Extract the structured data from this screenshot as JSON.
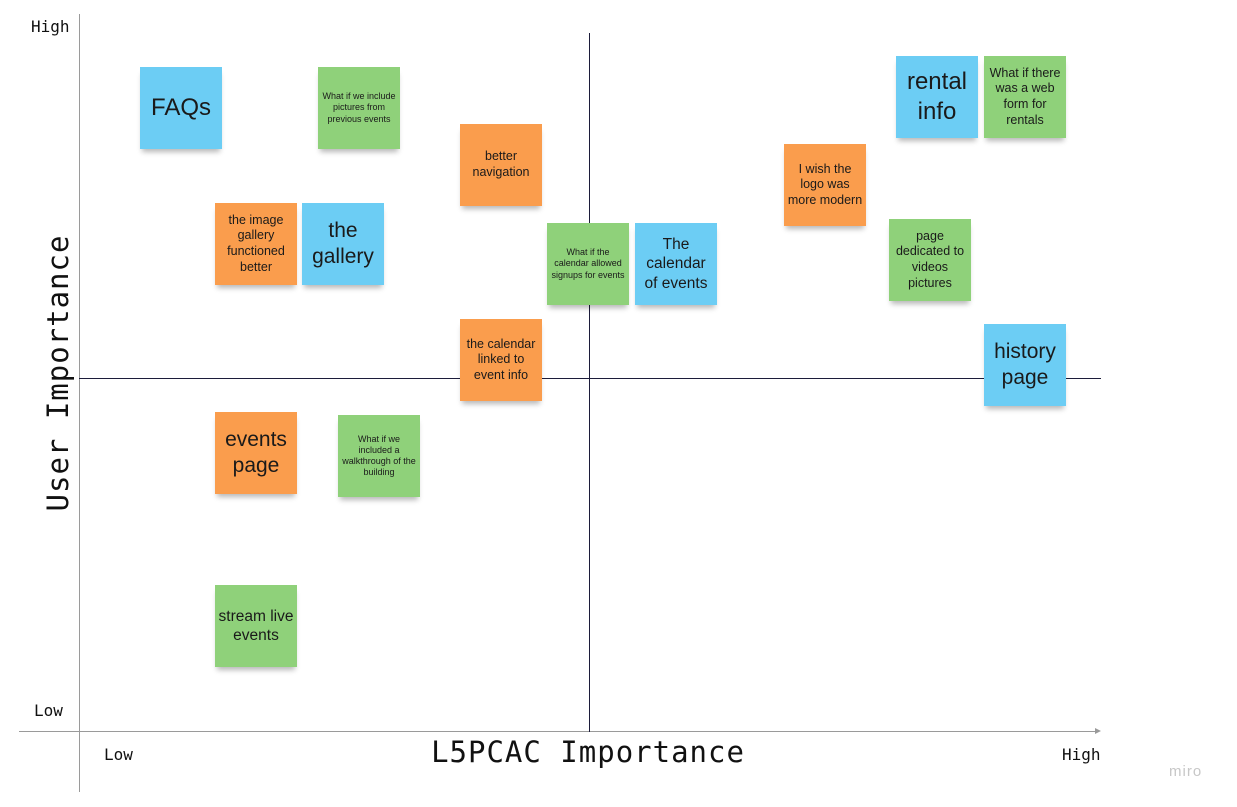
{
  "axes": {
    "y_title": "User Importance",
    "x_title": "L5PCAC Importance",
    "y_high": "High",
    "y_low": "Low",
    "x_low": "Low",
    "x_high": "High"
  },
  "notes": [
    {
      "id": "faqs",
      "text": "FAQs",
      "color": "blue"
    },
    {
      "id": "pictures-previous",
      "text": "What if we include pictures from previous events",
      "color": "green"
    },
    {
      "id": "better-navigation",
      "text": "better navigation",
      "color": "orange"
    },
    {
      "id": "image-gallery-functioned",
      "text": "the image gallery functioned better",
      "color": "orange"
    },
    {
      "id": "the-gallery",
      "text": "the gallery",
      "color": "blue"
    },
    {
      "id": "calendar-signups",
      "text": "What if the calendar allowed signups for events",
      "color": "green"
    },
    {
      "id": "calendar-of-events",
      "text": "The calendar of events",
      "color": "blue"
    },
    {
      "id": "calendar-linked",
      "text": "the calendar linked to event info",
      "color": "orange"
    },
    {
      "id": "rental-info",
      "text": "rental info",
      "color": "blue"
    },
    {
      "id": "web-form-rentals",
      "text": "What if there was a web form for rentals",
      "color": "green"
    },
    {
      "id": "logo-modern",
      "text": "I wish the logo was more modern",
      "color": "orange"
    },
    {
      "id": "videos-pictures",
      "text": "page dedicated to videos pictures",
      "color": "green"
    },
    {
      "id": "history-page",
      "text": "history page",
      "color": "blue"
    },
    {
      "id": "events-page",
      "text": "events page",
      "color": "orange"
    },
    {
      "id": "walkthrough",
      "text": "What if we included a walkthrough of the building",
      "color": "green"
    },
    {
      "id": "stream-live",
      "text": "stream live events",
      "color": "green"
    }
  ],
  "colors": {
    "blue": "#6ccdf4",
    "green": "#8fd17a",
    "orange": "#fa9d4d"
  },
  "brand": "miro"
}
